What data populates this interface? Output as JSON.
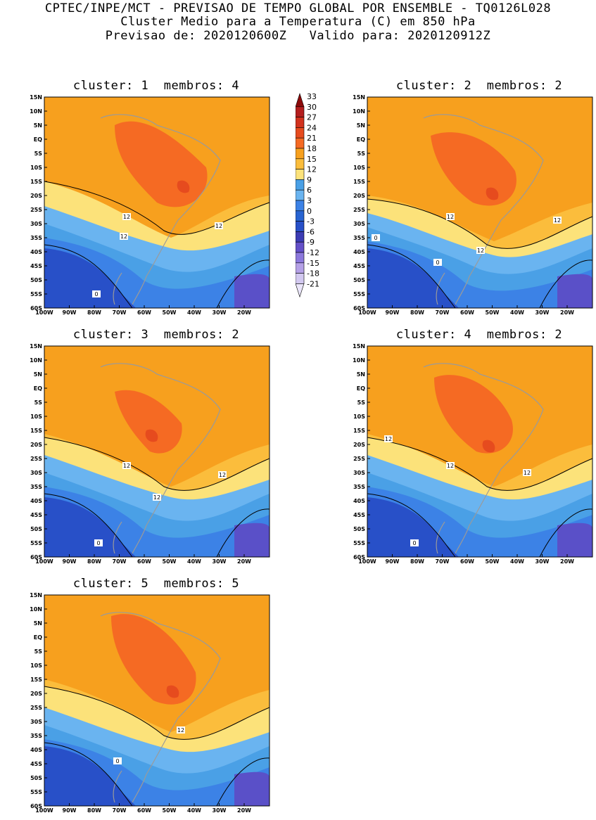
{
  "header": {
    "line1": "CPTEC/INPE/MCT - PREVISAO DE TEMPO GLOBAL POR ENSEMBLE - TQ0126L028",
    "line2": "Cluster Medio para a Temperatura (C) em 850 hPa",
    "line3": "Previsao de: 2020120600Z   Valido para: 2020120912Z"
  },
  "lat_ticks": [
    "15N",
    "10N",
    "5N",
    "EQ",
    "5S",
    "10S",
    "15S",
    "20S",
    "25S",
    "30S",
    "35S",
    "40S",
    "45S",
    "50S",
    "55S",
    "60S"
  ],
  "lon_ticks": [
    "100W",
    "90W",
    "80W",
    "70W",
    "60W",
    "50W",
    "40W",
    "30W",
    "20W"
  ],
  "legend": {
    "labels": [
      "33",
      "30",
      "27",
      "24",
      "21",
      "18",
      "15",
      "12",
      "9",
      "6",
      "3",
      "0",
      "-3",
      "-6",
      "-9",
      "-12",
      "-15",
      "-18",
      "-21"
    ],
    "colors": [
      "#8c0a0a",
      "#b41e1e",
      "#d2321e",
      "#e64b1e",
      "#f56a23",
      "#f7a01e",
      "#fbbd3c",
      "#fce27a",
      "#4aa0e6",
      "#6ab4f0",
      "#3c82e6",
      "#2864d2",
      "#2850c8",
      "#3c3cb4",
      "#6450c8",
      "#8c78dc",
      "#b4a0e6",
      "#d2c8f0",
      "#ebe6fa"
    ]
  },
  "panels": [
    {
      "title": "cluster: 1  membros: 4",
      "contour_labels": [
        "12",
        "12",
        "12",
        "0"
      ]
    },
    {
      "title": "cluster: 2  membros: 2",
      "contour_labels": [
        "12",
        "12",
        "12",
        "0",
        "0"
      ]
    },
    {
      "title": "cluster: 3  membros: 2",
      "contour_labels": [
        "12",
        "12",
        "12",
        "0"
      ]
    },
    {
      "title": "cluster: 4  membros: 2",
      "contour_labels": [
        "12",
        "12",
        "12",
        "0"
      ]
    },
    {
      "title": "cluster: 5  membros: 5",
      "contour_labels": [
        "12",
        "0"
      ]
    }
  ]
}
